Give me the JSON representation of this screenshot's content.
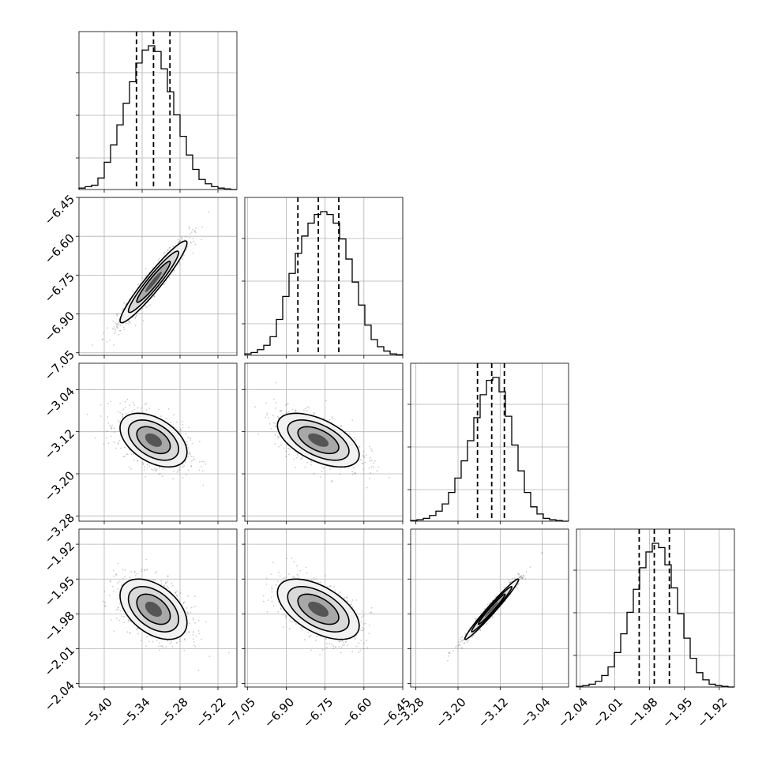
{
  "chart_data": {
    "type": "corner",
    "grid": true,
    "parameters": [
      {
        "ticks": [
          "−5.40",
          "−5.34",
          "−5.28",
          "−5.22"
        ],
        "tick_values": [
          -5.4,
          -5.34,
          -5.28,
          -5.22
        ],
        "range": [
          -5.44,
          -5.19
        ],
        "quantiles": [
          -5.349,
          -5.322,
          -5.296
        ],
        "hist": [
          0.01,
          0.02,
          0.03,
          0.08,
          0.19,
          0.31,
          0.45,
          0.6,
          0.75,
          0.88,
          0.97,
          1.0,
          0.96,
          0.84,
          0.68,
          0.52,
          0.37,
          0.24,
          0.14,
          0.07,
          0.04,
          0.02,
          0.01,
          0.005,
          0.0
        ]
      },
      {
        "ticks": [
          "−7.05",
          "−6.90",
          "−6.75",
          "−6.60",
          "−6.45"
        ],
        "tick_values": [
          -7.05,
          -6.9,
          -6.75,
          -6.6,
          -6.45
        ],
        "range": [
          -7.06,
          -6.45
        ],
        "quantiles": [
          -6.855,
          -6.776,
          -6.697
        ],
        "hist": [
          0.01,
          0.02,
          0.04,
          0.07,
          0.13,
          0.25,
          0.41,
          0.57,
          0.71,
          0.83,
          0.92,
          0.98,
          1.0,
          0.98,
          0.92,
          0.81,
          0.67,
          0.51,
          0.35,
          0.21,
          0.11,
          0.06,
          0.03,
          0.01,
          0.005
        ]
      },
      {
        "ticks": [
          "−3.28",
          "−3.20",
          "−3.12",
          "−3.04"
        ],
        "tick_values": [
          -3.28,
          -3.2,
          -3.12,
          -3.04
        ],
        "range": [
          -3.29,
          -2.99
        ],
        "quantiles": [
          -3.163,
          -3.136,
          -3.112
        ],
        "hist": [
          0.005,
          0.01,
          0.02,
          0.04,
          0.07,
          0.12,
          0.2,
          0.3,
          0.42,
          0.56,
          0.72,
          0.88,
          0.98,
          1.0,
          0.9,
          0.73,
          0.53,
          0.35,
          0.2,
          0.1,
          0.05,
          0.02,
          0.01,
          0.005,
          0.0
        ]
      },
      {
        "ticks": [
          "−2.04",
          "−2.01",
          "−1.98",
          "−1.95",
          "−1.92"
        ],
        "tick_values": [
          -2.04,
          -2.01,
          -1.98,
          -1.95,
          -1.92
        ],
        "range": [
          -2.043,
          -1.907
        ],
        "quantiles": [
          -1.989,
          -1.976,
          -1.963
        ],
        "hist": [
          0.005,
          0.01,
          0.02,
          0.04,
          0.08,
          0.14,
          0.24,
          0.37,
          0.52,
          0.68,
          0.83,
          0.94,
          1.0,
          0.97,
          0.85,
          0.69,
          0.51,
          0.34,
          0.2,
          0.1,
          0.05,
          0.02,
          0.01,
          0.005,
          0.0
        ]
      }
    ],
    "correlations": [
      [
        1.0,
        0.95,
        -0.45,
        -0.45
      ],
      [
        0.95,
        1.0,
        -0.55,
        -0.55
      ],
      [
        -0.45,
        -0.55,
        1.0,
        0.98
      ],
      [
        -0.45,
        -0.55,
        0.98,
        1.0
      ]
    ]
  }
}
